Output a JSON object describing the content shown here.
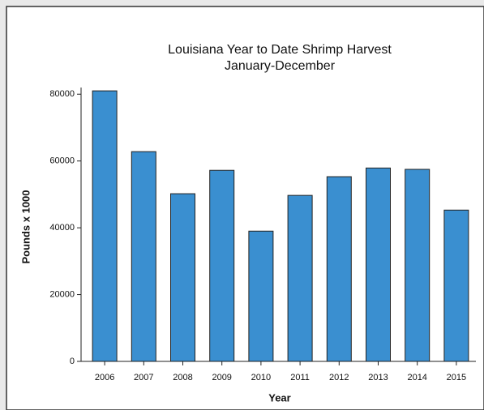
{
  "chart_data": {
    "type": "bar",
    "title": "Louisiana Year to Date Shrimp Harvest",
    "subtitle": "January-December",
    "y_label": "Pounds x 1000",
    "x_label": "Year",
    "categories": [
      "2006",
      "2007",
      "2008",
      "2009",
      "2010",
      "2011",
      "2012",
      "2013",
      "2014",
      "2015"
    ],
    "values": [
      81000,
      62800,
      50200,
      57200,
      39000,
      49700,
      55300,
      57900,
      57500,
      45300
    ],
    "color": "#3a8fd0",
    "ylim": [
      0,
      82000
    ],
    "yticks": [
      0,
      20000,
      40000,
      60000,
      80000
    ],
    "grid": false
  }
}
